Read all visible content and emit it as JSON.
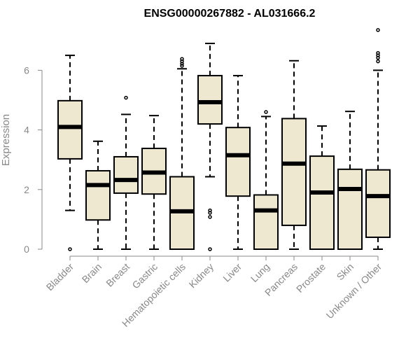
{
  "chart_data": {
    "type": "boxplot",
    "title": "ENSG00000267882 - AL031666.2",
    "xlabel": "",
    "ylabel": "Expression",
    "ylim": [
      0,
      7.5
    ],
    "yticks": [
      0,
      2,
      4,
      6
    ],
    "grid": false,
    "box_fill": "#EEE8D0",
    "median_color": "#000000",
    "categories": [
      "Bladder",
      "Brain",
      "Breast",
      "Gastric",
      "Hematopoietic cells",
      "Kidney",
      "Liver",
      "Lung",
      "Pancreas",
      "Prostate",
      "Skin",
      "Unknown / Other"
    ],
    "boxes": [
      {
        "category": "Bladder",
        "whisker_low": 1.3,
        "q1": 3.03,
        "median": 4.1,
        "q3": 4.98,
        "whisker_high": 6.5,
        "outliers": [
          0.0
        ]
      },
      {
        "category": "Brain",
        "whisker_low": 0.0,
        "q1": 0.98,
        "median": 2.15,
        "q3": 2.63,
        "whisker_high": 3.62,
        "outliers": []
      },
      {
        "category": "Breast",
        "whisker_low": 0.0,
        "q1": 1.88,
        "median": 2.32,
        "q3": 3.1,
        "whisker_high": 4.52,
        "outliers": [
          5.08
        ]
      },
      {
        "category": "Gastric",
        "whisker_low": 0.0,
        "q1": 1.85,
        "median": 2.57,
        "q3": 3.38,
        "whisker_high": 4.48,
        "outliers": []
      },
      {
        "category": "Hematopoietic cells",
        "whisker_low": 0.0,
        "q1": 0.0,
        "median": 1.27,
        "q3": 2.43,
        "whisker_high": 6.05,
        "outliers": [
          6.15,
          6.22,
          6.3,
          6.38
        ]
      },
      {
        "category": "Kidney",
        "whisker_low": 2.43,
        "q1": 4.2,
        "median": 4.93,
        "q3": 5.82,
        "whisker_high": 6.9,
        "outliers": [
          1.08,
          1.22,
          1.3,
          0.0
        ]
      },
      {
        "category": "Liver",
        "whisker_low": 0.0,
        "q1": 1.78,
        "median": 3.15,
        "q3": 4.08,
        "whisker_high": 5.82,
        "outliers": []
      },
      {
        "category": "Lung",
        "whisker_low": 0.0,
        "q1": 0.0,
        "median": 1.3,
        "q3": 1.82,
        "whisker_high": 4.45,
        "outliers": [
          4.6
        ]
      },
      {
        "category": "Pancreas",
        "whisker_low": 0.0,
        "q1": 0.8,
        "median": 2.87,
        "q3": 4.38,
        "whisker_high": 6.32,
        "outliers": []
      },
      {
        "category": "Prostate",
        "whisker_low": 0.0,
        "q1": 0.0,
        "median": 1.9,
        "q3": 3.12,
        "whisker_high": 4.13,
        "outliers": []
      },
      {
        "category": "Skin",
        "whisker_low": 0.0,
        "q1": 0.0,
        "median": 2.02,
        "q3": 2.68,
        "whisker_high": 4.62,
        "outliers": []
      },
      {
        "category": "Unknown / Other",
        "whisker_low": 0.0,
        "q1": 0.4,
        "median": 1.78,
        "q3": 2.66,
        "whisker_high": 6.0,
        "outliers": [
          6.3,
          6.42,
          6.5,
          6.58,
          7.35
        ]
      }
    ]
  }
}
